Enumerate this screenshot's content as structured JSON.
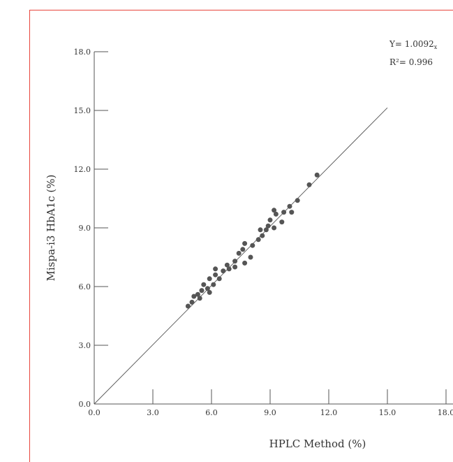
{
  "chart_data": {
    "type": "scatter",
    "title": "",
    "xlabel": "HPLC Method (%)",
    "ylabel": "Mispa-i3 HbA1c (%)",
    "xlim": [
      0,
      18
    ],
    "ylim": [
      0,
      18
    ],
    "x_ticks": [
      "0.0",
      "3.0",
      "6.0",
      "9.0",
      "12.0",
      "15.0",
      "18.0"
    ],
    "y_ticks": [
      "0.0",
      "3.0",
      "6.0",
      "9.0",
      "12.0",
      "15.0",
      "18.0"
    ],
    "x_tick_values": [
      0,
      3,
      6,
      9,
      12,
      15,
      18
    ],
    "y_tick_values": [
      0,
      3,
      6,
      9,
      12,
      15,
      18
    ],
    "grid": false,
    "legend": "none",
    "regression": {
      "equation_prefix": "Y= 1.0092",
      "equation_subscript": "x",
      "r_squared_label": "R²= 0.996",
      "slope": 1.0092,
      "x_range": [
        0,
        15
      ]
    },
    "marker_color": "#555555",
    "line_color": "#555555",
    "frame_color": "#e8453c",
    "points": [
      [
        4.8,
        5.0
      ],
      [
        5.0,
        5.2
      ],
      [
        5.1,
        5.5
      ],
      [
        5.3,
        5.6
      ],
      [
        5.4,
        5.4
      ],
      [
        5.5,
        5.8
      ],
      [
        5.6,
        6.1
      ],
      [
        5.8,
        5.9
      ],
      [
        5.9,
        5.7
      ],
      [
        5.9,
        6.4
      ],
      [
        6.1,
        6.1
      ],
      [
        6.2,
        6.6
      ],
      [
        6.2,
        6.9
      ],
      [
        6.4,
        6.4
      ],
      [
        6.6,
        6.8
      ],
      [
        6.8,
        7.1
      ],
      [
        6.9,
        6.9
      ],
      [
        7.2,
        7.0
      ],
      [
        7.2,
        7.3
      ],
      [
        7.4,
        7.7
      ],
      [
        7.6,
        7.9
      ],
      [
        7.7,
        8.2
      ],
      [
        7.7,
        7.2
      ],
      [
        8.0,
        7.5
      ],
      [
        8.1,
        8.1
      ],
      [
        8.4,
        8.4
      ],
      [
        8.5,
        8.9
      ],
      [
        8.6,
        8.6
      ],
      [
        8.8,
        8.9
      ],
      [
        8.9,
        9.1
      ],
      [
        9.0,
        9.4
      ],
      [
        9.2,
        9.9
      ],
      [
        9.3,
        9.7
      ],
      [
        9.2,
        9.0
      ],
      [
        9.6,
        9.3
      ],
      [
        9.7,
        9.8
      ],
      [
        10.0,
        10.1
      ],
      [
        10.1,
        9.8
      ],
      [
        10.4,
        10.4
      ],
      [
        11.0,
        11.2
      ],
      [
        11.4,
        11.7
      ]
    ]
  }
}
